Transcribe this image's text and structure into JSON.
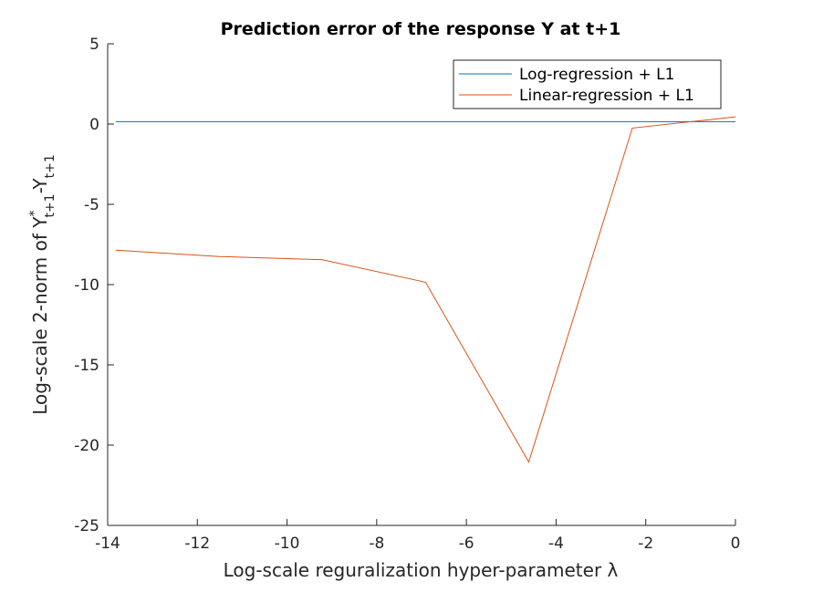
{
  "chart_data": {
    "type": "line",
    "title": "Prediction error of the response Y at t+1",
    "xlabel": "Log-scale reguralization hyper-parameter λ",
    "ylabel": {
      "prefix": "Log-scale 2-norm of Y",
      "sup": "*",
      "sub1": "t+1",
      "mid": "-Y",
      "sub2": "t+1"
    },
    "xlim": [
      -14,
      0
    ],
    "ylim": [
      -25,
      5
    ],
    "xticks": [
      -14,
      -12,
      -10,
      -8,
      -6,
      -4,
      -2,
      0
    ],
    "yticks": [
      -25,
      -20,
      -15,
      -10,
      -5,
      0,
      5
    ],
    "xtick_labels": [
      "-14",
      "-12",
      "-10",
      "-8",
      "-6",
      "-4",
      "-2",
      "0"
    ],
    "ytick_labels": [
      "-25",
      "-20",
      "-15",
      "-10",
      "-5",
      "0",
      "5"
    ],
    "grid": false,
    "legend_position": "top-right",
    "series": [
      {
        "name": "Log-regression + L1",
        "color": "#0072BD",
        "x": [
          -13.82,
          -11.51,
          -9.21,
          -6.91,
          -4.61,
          -2.3,
          0
        ],
        "y": [
          0.15,
          0.15,
          0.15,
          0.15,
          0.15,
          0.15,
          0.15
        ]
      },
      {
        "name": "Linear-regression + L1",
        "color": "#D95319",
        "x": [
          -13.82,
          -11.51,
          -9.21,
          -6.91,
          -4.61,
          -2.3,
          0
        ],
        "y": [
          -7.85,
          -8.25,
          -8.45,
          -9.85,
          -21.05,
          -0.25,
          0.45
        ]
      }
    ]
  }
}
